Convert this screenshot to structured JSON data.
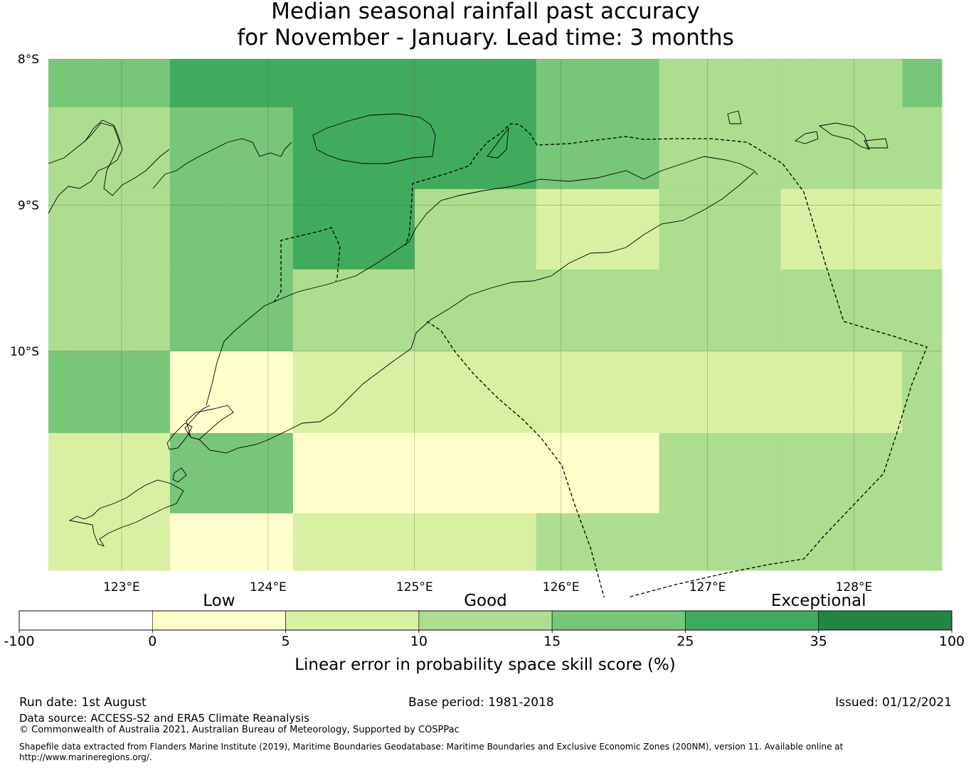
{
  "title": {
    "line1": "Median seasonal rainfall past accuracy",
    "line2": "for November - January. Lead time: 3 months"
  },
  "map": {
    "lon_range": [
      122.5,
      128.6
    ],
    "lat_range": [
      -8.0,
      -11.5
    ],
    "lon_ticks": [
      {
        "value": 123,
        "label": "123°E"
      },
      {
        "value": 124,
        "label": "124°E"
      },
      {
        "value": 125,
        "label": "125°E"
      },
      {
        "value": 126,
        "label": "126°E"
      },
      {
        "value": 127,
        "label": "127°E"
      },
      {
        "value": 128,
        "label": "128°E"
      }
    ],
    "lat_ticks": [
      {
        "value": -8,
        "label": "8°S"
      },
      {
        "value": -9,
        "label": "9°S"
      },
      {
        "value": -10,
        "label": "10°S"
      }
    ],
    "gridlines": true,
    "skill_grid": {
      "lon_edges": [
        122.5,
        123.33,
        124.17,
        125.0,
        125.83,
        126.67,
        127.5,
        128.33,
        128.6
      ],
      "lat_edges": [
        -8.0,
        -8.33,
        -8.89,
        -9.44,
        -10.0,
        -10.56,
        -11.11,
        -11.5
      ],
      "category_index_rows": [
        [
          4,
          5,
          5,
          5,
          4,
          3,
          3,
          4
        ],
        [
          3,
          4,
          5,
          5,
          4,
          3,
          3,
          3
        ],
        [
          3,
          4,
          5,
          3,
          2,
          3,
          2,
          2
        ],
        [
          3,
          4,
          3,
          3,
          3,
          3,
          3,
          3
        ],
        [
          4,
          1,
          2,
          2,
          2,
          2,
          2,
          3
        ],
        [
          2,
          4,
          1,
          1,
          1,
          3,
          3,
          3
        ],
        [
          2,
          1,
          2,
          2,
          3,
          3,
          3,
          3
        ]
      ]
    }
  },
  "legend": {
    "descriptors": [
      {
        "label": "Low",
        "value": 2.5
      },
      {
        "label": "Good",
        "value": 12.5
      },
      {
        "label": "Exceptional",
        "value": 35
      }
    ],
    "boundaries": [
      "-100",
      "0",
      "5",
      "10",
      "15",
      "25",
      "35",
      "100"
    ],
    "colors": [
      "#ffffff",
      "#ffffcc",
      "#d9f0a3",
      "#addd8e",
      "#78c679",
      "#41ab5d",
      "#238443"
    ],
    "label": "Linear error in probability space skill score (%)"
  },
  "footer": {
    "run_date": "Run date: 1st August",
    "base_period": "Base period: 1981-2018",
    "issued": "Issued: 01/12/2021",
    "data_source": "Data source: ACCESS-S2 and ERA5 Climate Reanalysis",
    "copyright": "© Commonwealth of Australia 2021, Australian Bureau of Meteorology, Supported by COSPPac",
    "shapefile_line1": "Shapefile data extracted from Flanders Marine Institute (2019), Maritime Boundaries Geodatabase: Maritime Boundaries and Exclusive Economic Zones (200NM), version 11. Available online at",
    "shapefile_line2": "http://www.marineregions.org/."
  }
}
